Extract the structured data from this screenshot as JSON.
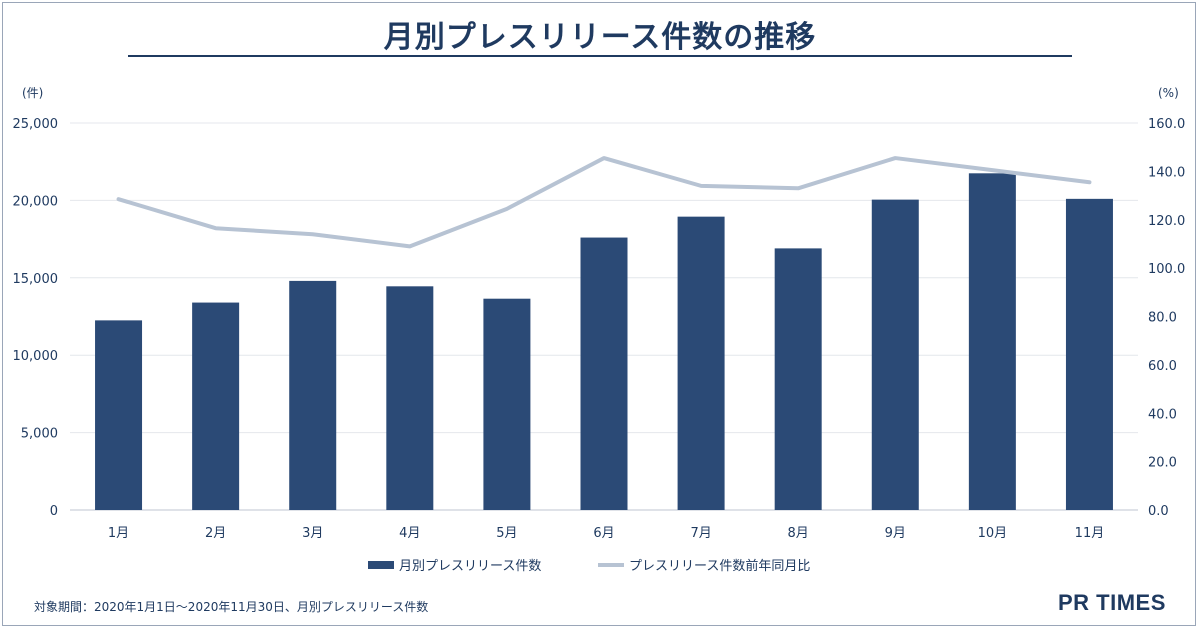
{
  "chart_data": {
    "type": "bar",
    "title": "月別プレスリリース件数の推移",
    "categories": [
      "1月",
      "2月",
      "3月",
      "4月",
      "5月",
      "6月",
      "7月",
      "8月",
      "9月",
      "10月",
      "11月"
    ],
    "series": [
      {
        "name": "月別プレスリリース件数",
        "type": "bar",
        "axis": "left",
        "color": "#2b4a76",
        "values": [
          12250,
          13400,
          14800,
          14450,
          13650,
          17600,
          18950,
          16900,
          20050,
          21750,
          20100
        ]
      },
      {
        "name": "プレスリリース件数前年同月比",
        "type": "line",
        "axis": "right",
        "color": "#b7c3d3",
        "values": [
          128.5,
          116.5,
          114.0,
          109.0,
          124.5,
          145.5,
          134.0,
          133.0,
          145.5,
          140.5,
          135.5
        ]
      }
    ],
    "y_left": {
      "unit_label": "(件)",
      "min": 0,
      "max": 25000,
      "ticks": [
        "0",
        "5,000",
        "10,000",
        "15,000",
        "20,000",
        "25,000"
      ],
      "tick_values": [
        0,
        5000,
        10000,
        15000,
        20000,
        25000
      ]
    },
    "y_right": {
      "unit_label": "(%)",
      "min": 0,
      "max": 160,
      "ticks": [
        "0.0",
        "20.0",
        "40.0",
        "60.0",
        "80.0",
        "100.0",
        "120.0",
        "140.0",
        "160.0"
      ],
      "tick_values": [
        0,
        20,
        40,
        60,
        80,
        100,
        120,
        140,
        160
      ]
    },
    "grid": true,
    "legend_position": "bottom-center"
  },
  "footnote": "対象期間：2020年1月1日～2020年11月30日、月別プレスリリース件数",
  "brand": "PR TIMES"
}
